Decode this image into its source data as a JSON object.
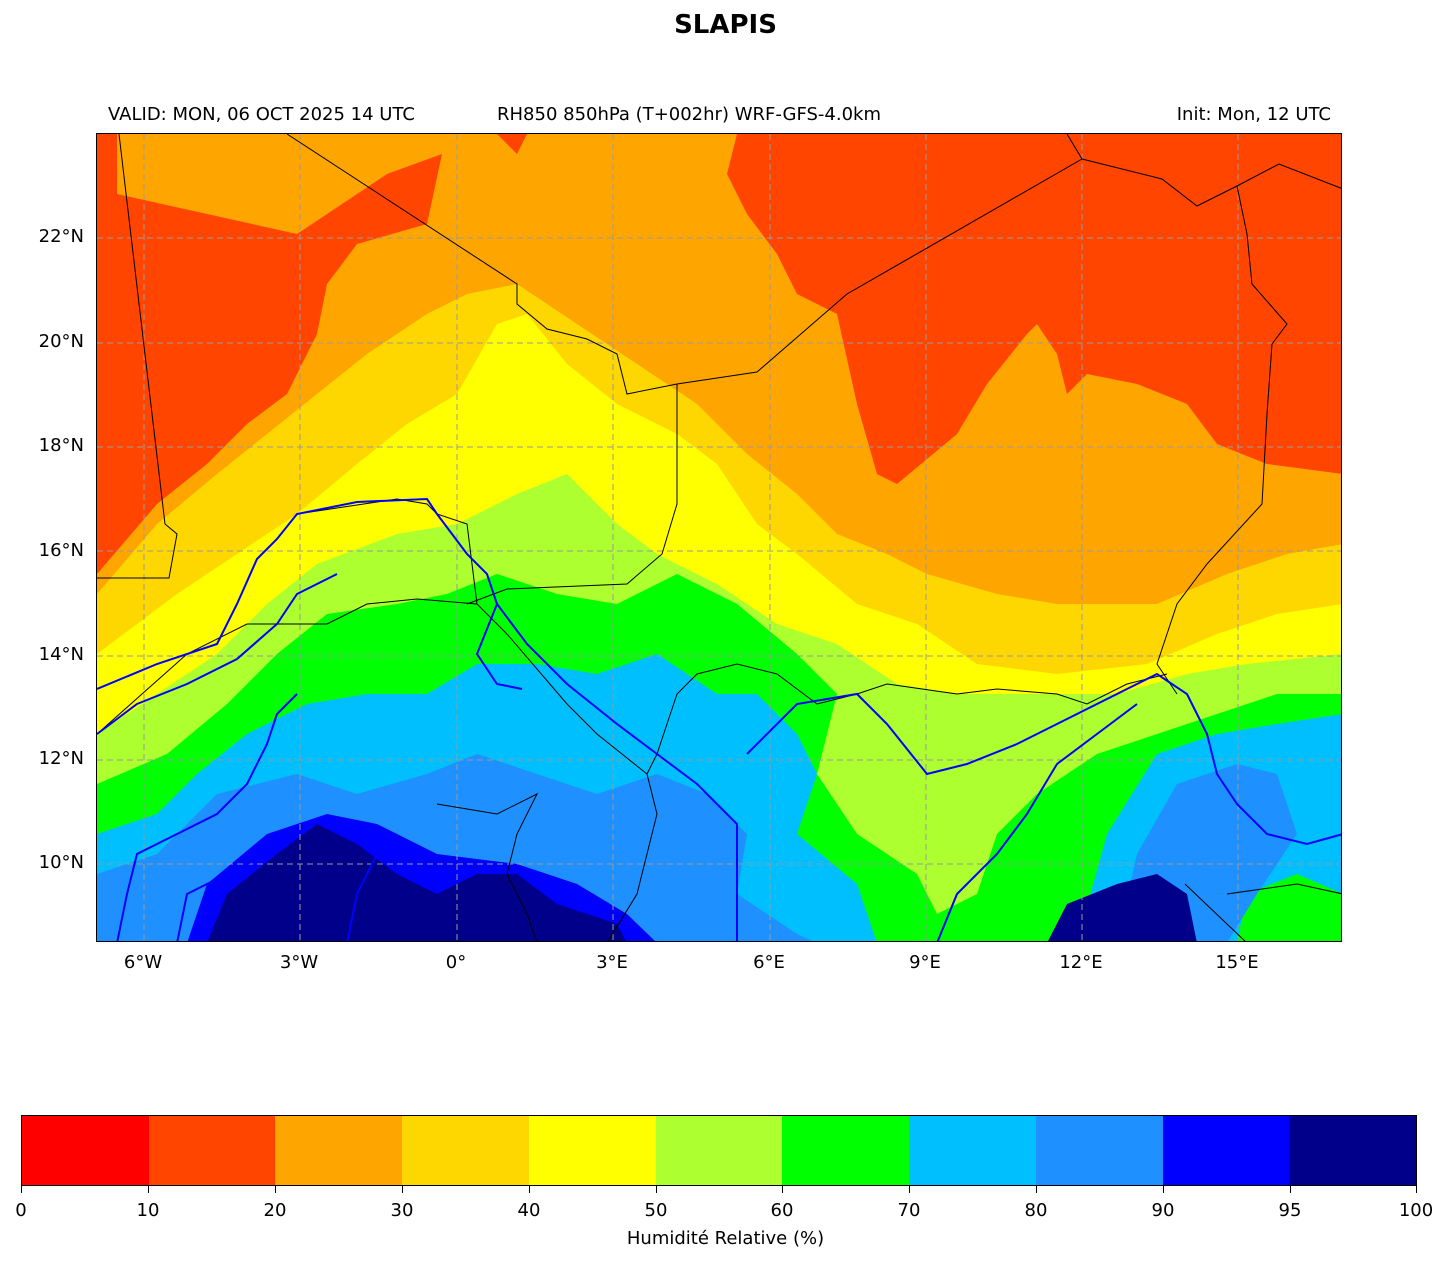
{
  "title": "SLAPIS",
  "subtitle": {
    "valid": "VALID: MON, 06 OCT 2025 14 UTC",
    "product": "RH850 850hPa (T+002hr) WRF-GFS-4.0km",
    "init": "Init: Mon, 12 UTC"
  },
  "map": {
    "lat_labels": [
      "22°N",
      "20°N",
      "18°N",
      "16°N",
      "14°N",
      "12°N",
      "10°N"
    ],
    "lon_labels": [
      "6°W",
      "3°W",
      "0°",
      "3°E",
      "6°E",
      "9°E",
      "12°E",
      "15°E"
    ],
    "lon_range": [
      -6.9,
      17
    ],
    "lat_range": [
      8.5,
      24
    ]
  },
  "colorbar": {
    "label": "Humidité Relative (%)",
    "ticks": [
      "0",
      "10",
      "20",
      "30",
      "40",
      "50",
      "60",
      "70",
      "80",
      "90",
      "95",
      "100"
    ],
    "colors": [
      "#ff0000",
      "#ff4500",
      "#ffa500",
      "#ffd700",
      "#ffff00",
      "#adff2f",
      "#00ff00",
      "#00bfff",
      "#1e90ff",
      "#0000ff",
      "#00008b"
    ]
  }
}
